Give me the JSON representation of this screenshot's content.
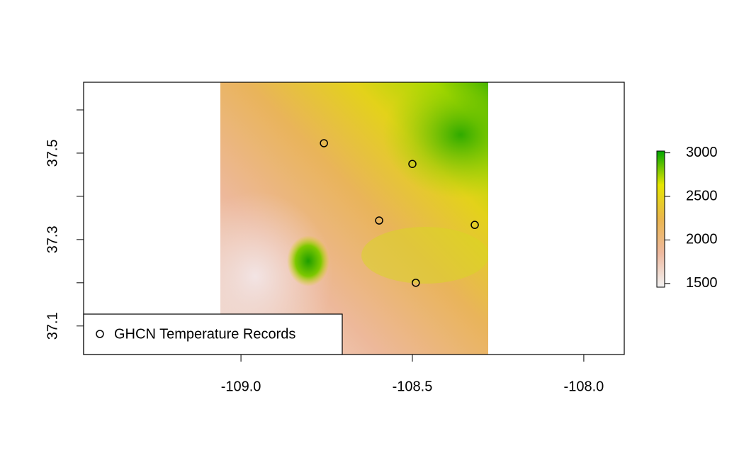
{
  "chart_data": {
    "type": "scatter",
    "series": [
      {
        "name": "GHCN Temperature Records",
        "color": "#000000",
        "x": [
          -108.758,
          -108.5,
          -108.597,
          -108.318,
          -108.49
        ],
        "values": [
          37.523,
          37.475,
          37.344,
          37.334,
          37.2
        ]
      }
    ],
    "xlim": [
      -109.459,
      -107.882
    ],
    "ylim": [
      37.034,
      37.664
    ],
    "xticks": [
      {
        "value": -109,
        "label": "-109.0"
      },
      -108.5,
      {
        "value": -108,
        "label": "-108.0"
      }
    ],
    "yticks": [
      37.1,
      37.3,
      37.5
    ],
    "yminor_ticks": [
      37.2,
      37.4,
      37.6
    ],
    "legend": "bottomleft",
    "colorbar": {
      "zlim": [
        1458,
        3021
      ],
      "ticks": [
        1500,
        2000,
        2500,
        3000
      ],
      "colors": [
        "#F2F2F2",
        "#EEB99F",
        "#EAB64E",
        "#E6E600",
        "#00A600"
      ]
    }
  }
}
